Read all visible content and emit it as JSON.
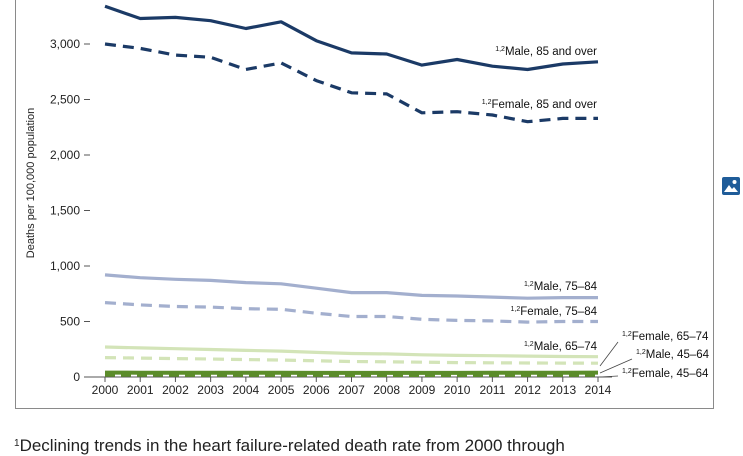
{
  "footnote": {
    "marker": "1",
    "text": "Declining trends in the heart failure-related death rate from 2000 through"
  },
  "image_button": {
    "icon": "image-icon",
    "color": "#1f5c99"
  },
  "chart_data": {
    "type": "line",
    "title": "",
    "xlabel": "",
    "ylabel": "Deaths per 100,000 population",
    "x": [
      "2000",
      "2001",
      "2002",
      "2003",
      "2004",
      "2005",
      "2006",
      "2007",
      "2008",
      "2009",
      "2010",
      "2011",
      "2012",
      "2013",
      "2014"
    ],
    "ylim": [
      0,
      3400
    ],
    "yticks": [
      0,
      500,
      1000,
      1500,
      2000,
      2500,
      3000
    ],
    "ytick_labels": [
      "0",
      "500",
      "1,000",
      "1,500",
      "2,000",
      "2,500",
      "3,000"
    ],
    "grid": false,
    "series": [
      {
        "name": "Male, 85 and over",
        "superscript": "1,2",
        "color": "#1b3a66",
        "dash": "solid",
        "values": [
          3340,
          3230,
          3240,
          3210,
          3140,
          3200,
          3030,
          2920,
          2910,
          2810,
          2860,
          2800,
          2770,
          2820,
          2840
        ]
      },
      {
        "name": "Female, 85 and over",
        "superscript": "1,2",
        "color": "#1b3a66",
        "dash": "dashed",
        "values": [
          3000,
          2960,
          2900,
          2880,
          2770,
          2830,
          2670,
          2560,
          2550,
          2380,
          2390,
          2360,
          2300,
          2330,
          2330
        ]
      },
      {
        "name": "Male, 75–84",
        "superscript": "1,2",
        "color": "#a3afce",
        "dash": "solid",
        "values": [
          920,
          895,
          880,
          870,
          850,
          840,
          800,
          760,
          760,
          735,
          730,
          720,
          710,
          715,
          715
        ]
      },
      {
        "name": "Female, 75–84",
        "superscript": "1,2",
        "color": "#a3afce",
        "dash": "dashed",
        "values": [
          670,
          650,
          635,
          630,
          615,
          610,
          575,
          545,
          545,
          520,
          510,
          505,
          495,
          500,
          500
        ]
      },
      {
        "name": "Male, 65–74",
        "superscript": "1,2",
        "color": "#d3e4b8",
        "dash": "solid",
        "values": [
          270,
          262,
          255,
          248,
          240,
          233,
          222,
          212,
          208,
          200,
          195,
          192,
          188,
          185,
          183
        ]
      },
      {
        "name": "Female, 65–74",
        "superscript": "1,2",
        "color": "#d3e4b8",
        "dash": "dashed",
        "values": [
          175,
          170,
          166,
          162,
          157,
          153,
          146,
          140,
          137,
          133,
          130,
          128,
          126,
          125,
          124
        ]
      },
      {
        "name": "Male, 45–64",
        "superscript": "1,2",
        "color": "#5b8c2a",
        "dash": "solid",
        "values": [
          40,
          39,
          39,
          38,
          38,
          38,
          37,
          37,
          37,
          37,
          37,
          38,
          38,
          39,
          40
        ]
      },
      {
        "name": "Female, 45–64",
        "superscript": "1,2",
        "color": "#5b8c2a",
        "dash": "dashed",
        "values": [
          20,
          20,
          20,
          19,
          19,
          19,
          19,
          18,
          18,
          18,
          18,
          19,
          19,
          19,
          20
        ]
      }
    ]
  }
}
